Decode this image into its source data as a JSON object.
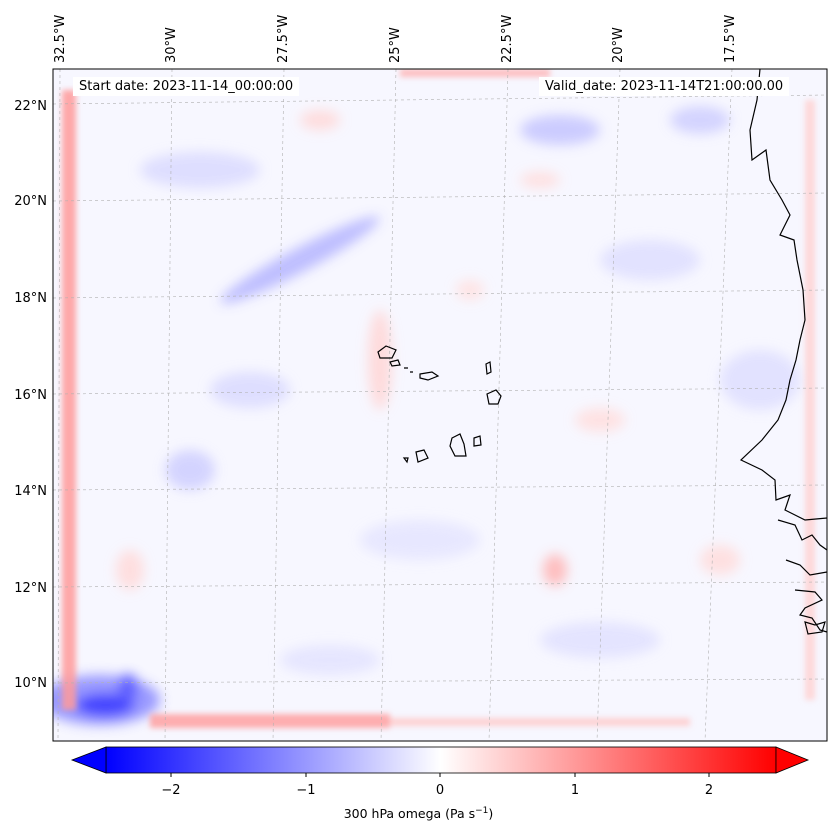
{
  "header": {
    "start_date_label": "Start date: 2023-11-14_00:00:00",
    "valid_date_label": "Valid_date: 2023-11-14T21:00:00.00"
  },
  "axes": {
    "lon_labels": [
      "32.5°W",
      "30°W",
      "27.5°W",
      "25°W",
      "22.5°W",
      "20°W",
      "17.5°W"
    ],
    "lat_labels": [
      "22°N",
      "20°N",
      "18°N",
      "16°N",
      "14°N",
      "12°N",
      "10°N"
    ]
  },
  "colorbar": {
    "label_prefix": "300 hPa omega (Pa s",
    "label_exp": "−1",
    "label_suffix": ")",
    "ticks": [
      "−2",
      "−1",
      "0",
      "1",
      "2"
    ],
    "min": -2.6,
    "max": 2.6,
    "colormap": "bwr",
    "colors": {
      "negative": "#0000ff",
      "neutral": "#ffffff",
      "positive": "#ff0000"
    }
  },
  "colors": {
    "coastline": "#000000",
    "gridline": "#b0b0b0",
    "frame": "#000000"
  }
}
